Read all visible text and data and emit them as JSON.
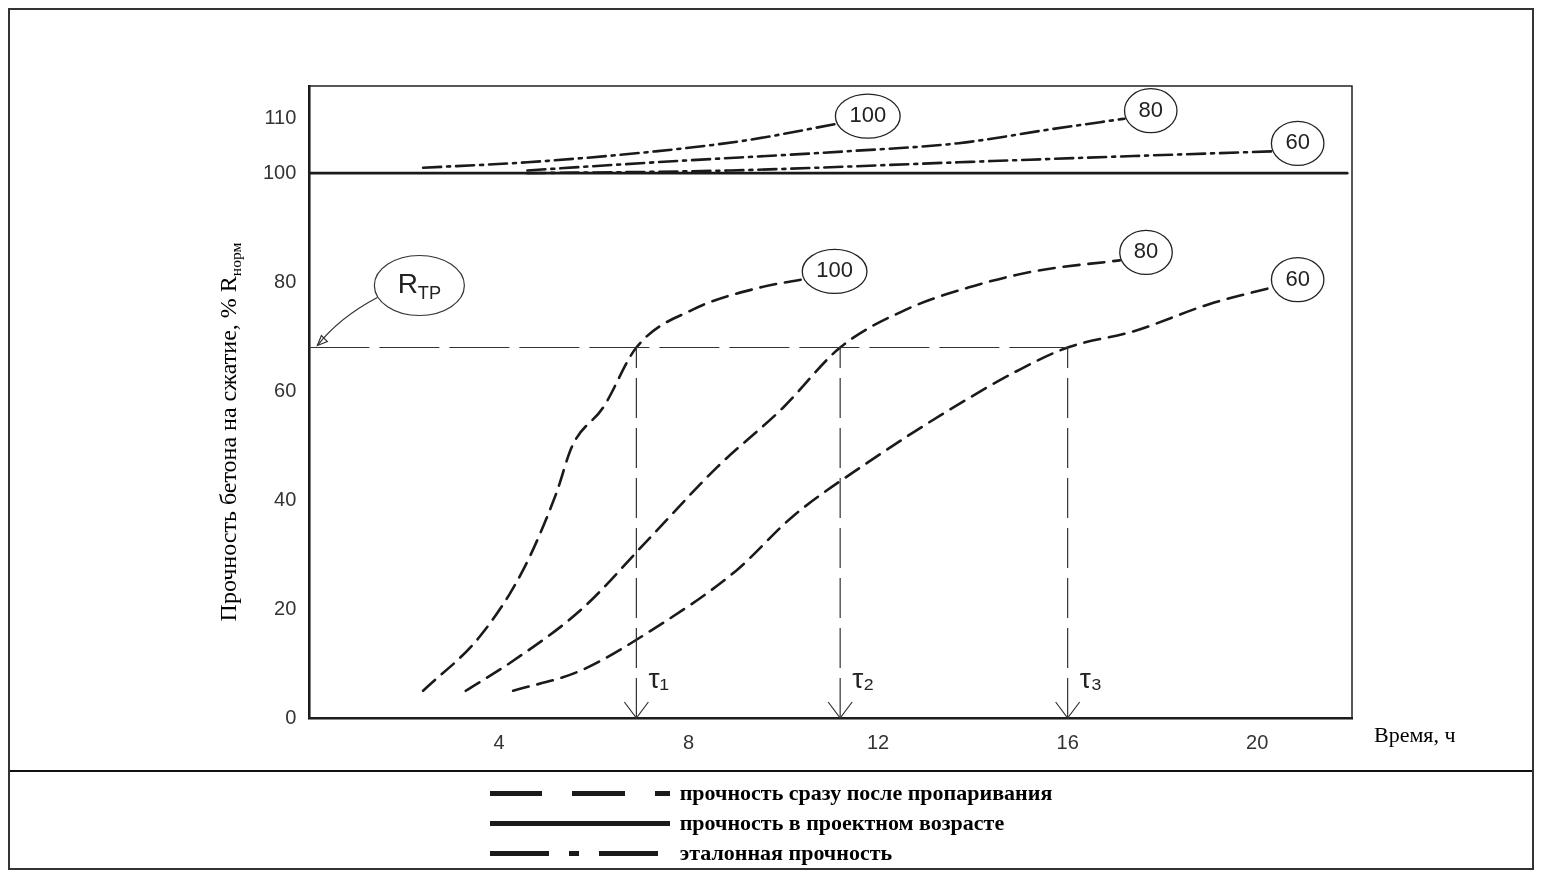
{
  "chart_data": {
    "type": "line",
    "xlabel": "Время, ч",
    "ylabel": "Прочность бетона на сжатие, % R$_{норм}$",
    "xlim": [
      0,
      22
    ],
    "xticks": [
      4,
      8,
      12,
      16,
      20
    ],
    "ylim": [
      0,
      116
    ],
    "yticks": [
      0,
      20,
      40,
      60,
      80,
      100,
      110
    ],
    "grid": false,
    "legend": "bottom",
    "marker": "none",
    "series": [
      {
        "name": "прочность сразу после пропаривания",
        "color": "#1a1a1a",
        "line_style": "dashed",
        "x": [
          2.4,
          3.6,
          4.5,
          5.2,
          5.55,
          6.2,
          6.9,
          8.1,
          9.5,
          10.4
        ],
        "values": [
          5,
          15,
          27,
          41,
          50,
          57,
          68,
          75,
          79,
          80.5
        ]
      },
      {
        "color": "#1a1a1a",
        "line_style": "dashed",
        "x": [
          3.3,
          4.3,
          5.75,
          7.07,
          8.6,
          10,
          11.2,
          12.6,
          13.9,
          15.3,
          17.1
        ],
        "values": [
          5,
          10.5,
          20,
          32,
          46,
          57,
          68,
          75,
          79,
          82,
          84
        ]
      },
      {
        "color": "#1a1a1a",
        "line_style": "dashed",
        "x": [
          4.3,
          5.7,
          7.2,
          9,
          10.2,
          11.8,
          13.4,
          15,
          16,
          17.4,
          19,
          20.3
        ],
        "values": [
          5,
          8.6,
          16,
          27,
          37,
          47,
          56,
          64,
          68,
          71,
          76,
          79
        ]
      },
      {
        "name": "прочность в проектном возрасте",
        "color": "#1a1a1a",
        "line_style": "solid",
        "x": [
          0,
          21.9
        ],
        "values": [
          100,
          100
        ]
      },
      {
        "name": "эталонная прочность",
        "color": "#1a1a1a",
        "line_style": "dashdot",
        "x": [
          2.4,
          4.6,
          7.3,
          9.2,
          11.1
        ],
        "values": [
          101,
          102,
          104,
          106,
          109
        ]
      },
      {
        "color": "#1a1a1a",
        "line_style": "dashdot",
        "x": [
          4.6,
          7.3,
          11.3,
          13.7,
          15.6,
          17.2
        ],
        "values": [
          100.5,
          102,
          104,
          105.5,
          108,
          110
        ]
      },
      {
        "color": "#1a1a1a",
        "line_style": "dashdot",
        "x": [
          4.6,
          8.9,
          13.7,
          16.9,
          20.3
        ],
        "values": [
          100,
          100.5,
          102,
          103,
          104
        ]
      }
    ],
    "ref_lines": [
      {
        "axis": "y",
        "value": 68,
        "label": "R$_{ТР}$"
      },
      {
        "axis": "x",
        "value": 6.9,
        "label": "τ₁"
      },
      {
        "axis": "x",
        "value": 11.2,
        "label": "τ₂"
      },
      {
        "axis": "x",
        "value": 16,
        "label": "τ₃"
      }
    ],
    "annotations": [
      {
        "text": "100",
        "x": 11.1,
        "y": 109
      },
      {
        "text": "80",
        "x": 17.2,
        "y": 110
      },
      {
        "text": "60",
        "x": 20.3,
        "y": 104
      },
      {
        "text": "100",
        "x": 10.4,
        "y": 80.5
      },
      {
        "text": "80",
        "x": 17.1,
        "y": 84
      },
      {
        "text": "60",
        "x": 20.3,
        "y": 79
      }
    ]
  }
}
